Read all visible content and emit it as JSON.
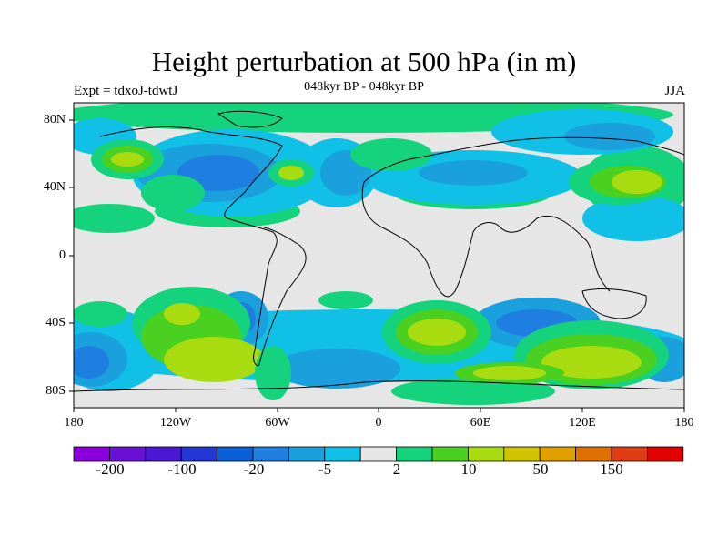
{
  "map": {
    "title": "Height perturbation at 500 hPa (in m)",
    "left_string": "Expt = tdxoJ-tdwtJ",
    "center_string": "048kyr BP - 048kyr BP",
    "right_string": "JJA",
    "lon_ticks": [
      "180",
      "120W",
      "60W",
      "0",
      "60E",
      "120E",
      "180"
    ],
    "lat_ticks": [
      "80N",
      "40N",
      "0",
      "40S",
      "80S"
    ],
    "regions": [
      {
        "name": "n-america-low",
        "level": "-20"
      },
      {
        "name": "n-atlantic-low",
        "level": "-20"
      },
      {
        "name": "eurasia-low",
        "level": "-20"
      },
      {
        "name": "s-pacific-low",
        "level": "-20"
      },
      {
        "name": "s-indian-low",
        "level": "-20"
      },
      {
        "name": "ne-pacific-high",
        "level": "50"
      },
      {
        "name": "w-pacific-high",
        "level": "50"
      },
      {
        "name": "s-atlantic-high",
        "level": "50"
      },
      {
        "name": "se-pacific-high",
        "level": "50"
      },
      {
        "name": "s-australia-high",
        "level": "50"
      }
    ]
  },
  "colorbar": {
    "colors": [
      "#8a00dc",
      "#6a10d6",
      "#4a18d4",
      "#2236d4",
      "#0a5ed6",
      "#1e7fe0",
      "#1aa0dc",
      "#10c0e6",
      "#e6e6e6",
      "#14d37c",
      "#4ad020",
      "#a8dc10",
      "#d0c400",
      "#e0a000",
      "#e07000",
      "#e03c14",
      "#e00000"
    ],
    "labels": [
      "-200",
      "-100",
      "-20",
      "-5",
      "2",
      "10",
      "50",
      "150"
    ]
  },
  "palette": {
    "neutral": "#e6e6e6",
    "ltblue": "#10c0e6",
    "midblue": "#1aa0dc",
    "blue": "#1e7fe0",
    "green": "#14d37c",
    "ltgreen": "#4ad020",
    "yelgreen": "#a8dc10",
    "coast": "#000000"
  }
}
